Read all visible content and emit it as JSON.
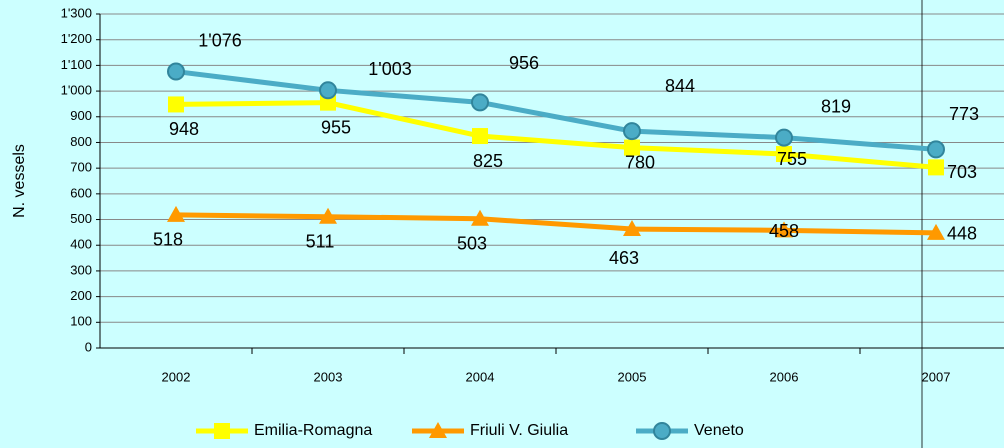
{
  "chart_data": {
    "type": "line",
    "y_label": "N. vessels",
    "categories": [
      "2002",
      "2003",
      "2004",
      "2005",
      "2006",
      "2007"
    ],
    "series": [
      {
        "name": "Emilia-Romagna",
        "color": "#ffff00",
        "marker": "square",
        "values": [
          948,
          955,
          825,
          780,
          755,
          703
        ]
      },
      {
        "name": "Friuli V. Giulia",
        "color": "#ff9900",
        "marker": "triangle",
        "values": [
          518,
          511,
          503,
          463,
          458,
          448
        ]
      },
      {
        "name": "Veneto",
        "color": "#4bacc6",
        "marker": "circle",
        "values": [
          1076,
          1003,
          956,
          844,
          819,
          773
        ],
        "value_labels": [
          "1'076",
          "1'003",
          "956",
          "844",
          "819",
          "773"
        ]
      }
    ],
    "ylim": [
      0,
      1300
    ],
    "yticks": [
      0,
      100,
      200,
      300,
      400,
      500,
      600,
      700,
      800,
      900,
      {
        "value": 1000,
        "label": "1'000"
      },
      {
        "value": 1100,
        "label": "1'100"
      },
      {
        "value": 1200,
        "label": "1'200"
      },
      {
        "value": 1300,
        "label": "1'300"
      }
    ],
    "grid": true,
    "legend": "bottom"
  }
}
